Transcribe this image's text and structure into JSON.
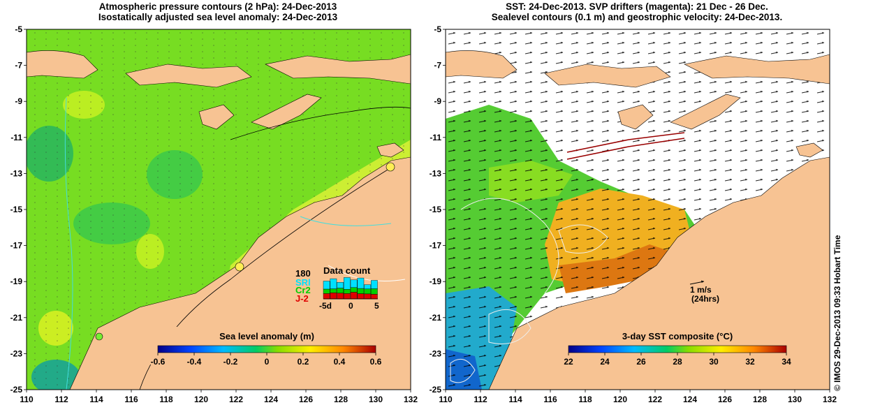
{
  "left_panel": {
    "title_line1": "Atmospheric pressure contours (2 hPa): 24-Dec-2013",
    "title_line2": "Isostatically adjusted sea level anomaly: 24-Dec-2013",
    "colorbar_title": "Sea level anomaly (m)",
    "colorbar_ticks": [
      "-0.6",
      "-0.4",
      "-0.2",
      "0",
      "0.2",
      "0.4",
      "0.6"
    ],
    "colorbar_range": [
      -0.6,
      0.6
    ],
    "data_count": {
      "title": "Data count",
      "max_label": "180",
      "legend": [
        {
          "label": "SRl",
          "color": "#00e0ff"
        },
        {
          "label": "Cr2",
          "color": "#00d000"
        },
        {
          "label": "J-2",
          "color": "#e00000"
        }
      ],
      "x_ticks": [
        "-5d",
        "0",
        "5"
      ]
    }
  },
  "right_panel": {
    "title_line1": "SST: 24-Dec-2013. SVP drifters (magenta): 21 Dec - 26 Dec.",
    "title_line2": "Sealevel contours (0.1 m) and geostrophic velocity: 24-Dec-2013.",
    "colorbar_title": "3-day SST composite (°C)",
    "colorbar_ticks": [
      "22",
      "24",
      "26",
      "28",
      "30",
      "32",
      "34"
    ],
    "colorbar_range": [
      22,
      34
    ],
    "scale_label": "1 m/s",
    "scale_sublabel": "(24hrs)"
  },
  "axes": {
    "x_ticks": [
      "110",
      "112",
      "114",
      "116",
      "118",
      "120",
      "122",
      "124",
      "126",
      "128",
      "130",
      "132"
    ],
    "y_ticks": [
      "-5",
      "-7",
      "-9",
      "-11",
      "-13",
      "-15",
      "-17",
      "-19",
      "-21",
      "-23",
      "-25"
    ]
  },
  "credit": "© IMOS 29-Dec-2013 09:33 Hobart Time",
  "colors": {
    "land": "#f7c393",
    "sea_green": "#66dd22",
    "sea_light": "#aaee22",
    "warm_sst": "#f0b020",
    "cool_sst": "#22aacc"
  }
}
